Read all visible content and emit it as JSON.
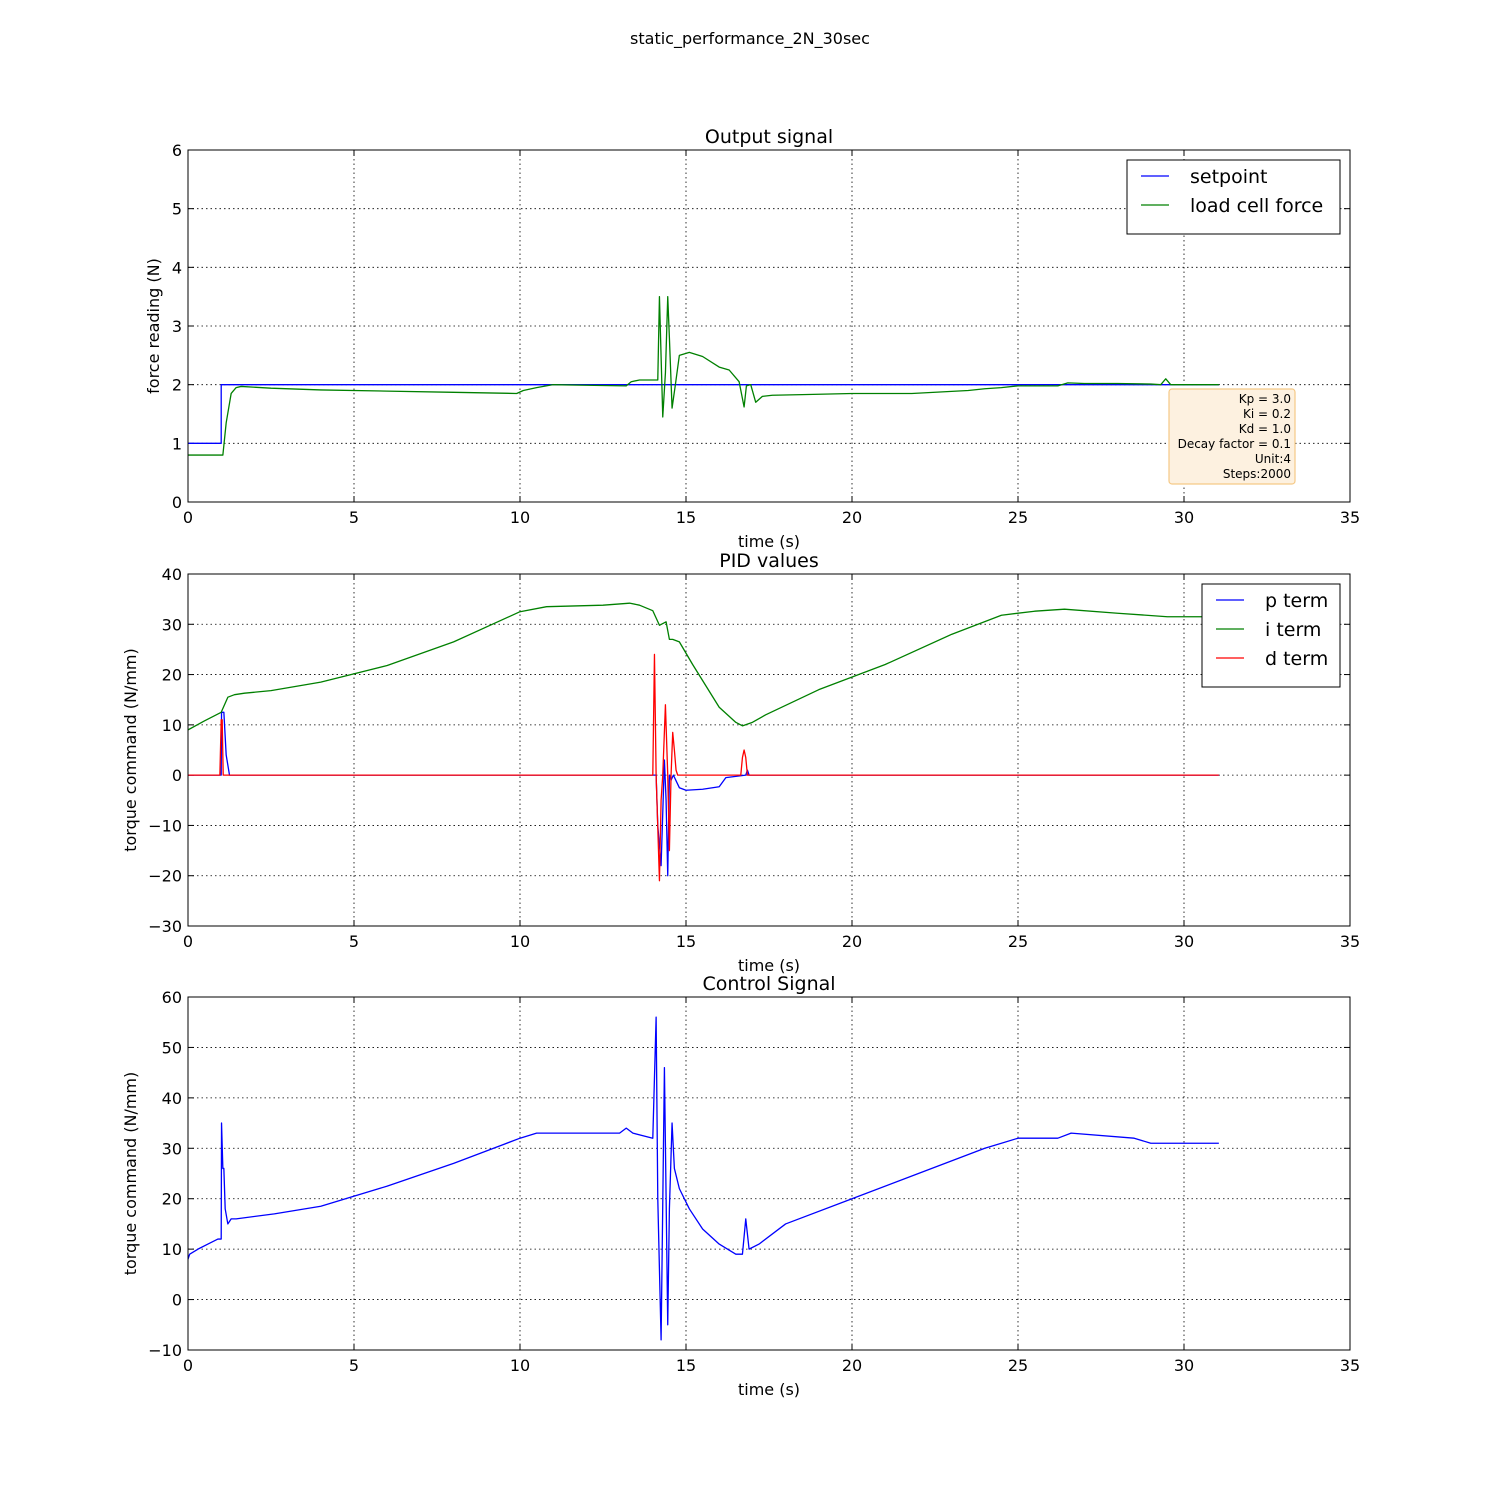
{
  "figure": {
    "suptitle": "static_performance_2N_30sec"
  },
  "annotation": {
    "lines": [
      "Kp = 3.0",
      "Ki = 0.2",
      "Kd = 1.0",
      "Decay factor = 0.1",
      "Unit:4",
      "Steps:2000"
    ],
    "box_fill": "#fdf1e0",
    "box_edge": "#f5c987"
  },
  "chart_data": [
    {
      "type": "line",
      "title": "Output signal",
      "xlabel": "time (s)",
      "ylabel": "force reading (N)",
      "xlim": [
        0,
        35
      ],
      "ylim": [
        0,
        6
      ],
      "xticks": [
        "0",
        "5",
        "10",
        "15",
        "20",
        "25",
        "30",
        "35"
      ],
      "yticks": [
        "0",
        "1",
        "2",
        "3",
        "4",
        "5",
        "6"
      ],
      "grid": true,
      "legend": "top-right",
      "series": [
        {
          "name": "setpoint",
          "color": "#0000ff",
          "x": [
            0,
            1.0,
            1.0,
            31.05
          ],
          "y": [
            1,
            1,
            2,
            2
          ]
        },
        {
          "name": "load cell force",
          "color": "#008000",
          "x": [
            0,
            1.05,
            1.15,
            1.3,
            1.45,
            1.6,
            2.5,
            4,
            6,
            8,
            9.9,
            10.1,
            10.5,
            11,
            12,
            13.2,
            13.35,
            13.6,
            14.15,
            14.2,
            14.3,
            14.38,
            14.45,
            14.5,
            14.58,
            14.68,
            14.8,
            15.1,
            15.5,
            16,
            16.3,
            16.6,
            16.75,
            16.82,
            16.95,
            17.1,
            17.3,
            17.6,
            18.5,
            20,
            21.8,
            23.5,
            24,
            24.5,
            25,
            26.2,
            26.5,
            27,
            28,
            29,
            29.3,
            29.45,
            29.6,
            30,
            31.05
          ],
          "y": [
            0.8,
            0.8,
            1.35,
            1.85,
            1.95,
            1.97,
            1.94,
            1.91,
            1.89,
            1.87,
            1.85,
            1.9,
            1.95,
            2.0,
            1.99,
            1.98,
            2.05,
            2.08,
            2.08,
            3.5,
            1.45,
            2.2,
            3.5,
            2.8,
            1.6,
            2.0,
            2.5,
            2.55,
            2.48,
            2.3,
            2.25,
            2.05,
            1.62,
            1.98,
            2.0,
            1.7,
            1.8,
            1.82,
            1.83,
            1.85,
            1.85,
            1.9,
            1.93,
            1.95,
            1.98,
            1.98,
            2.03,
            2.02,
            2.02,
            2.01,
            2.0,
            2.1,
            2.0,
            2.0,
            2.0
          ]
        }
      ]
    },
    {
      "type": "line",
      "title": "PID values",
      "xlabel": "time (s)",
      "ylabel": "torque command (N/mm)",
      "xlim": [
        0,
        35
      ],
      "ylim": [
        -30,
        40
      ],
      "xticks": [
        "0",
        "5",
        "10",
        "15",
        "20",
        "25",
        "30",
        "35"
      ],
      "yticks": [
        "−30",
        "−20",
        "−10",
        "0",
        "10",
        "20",
        "30",
        "40"
      ],
      "grid": true,
      "legend": "top-right",
      "series": [
        {
          "name": "p term",
          "color": "#0000ff",
          "x": [
            0,
            1.0,
            1.01,
            1.08,
            1.15,
            1.25,
            14.1,
            14.15,
            14.25,
            14.35,
            14.4,
            14.45,
            14.5,
            14.55,
            14.62,
            14.8,
            15.0,
            15.5,
            16.0,
            16.2,
            16.8,
            16.85,
            16.9,
            31.05
          ],
          "y": [
            0,
            0,
            12.5,
            12.5,
            4,
            0,
            0,
            -10,
            -18,
            3,
            -5,
            -20,
            0,
            -1,
            0,
            -2.5,
            -3,
            -2.8,
            -2.3,
            -0.5,
            0,
            1,
            0,
            0
          ]
        },
        {
          "name": "i term",
          "color": "#008000",
          "x": [
            0,
            0.5,
            1.0,
            1.2,
            1.4,
            1.7,
            2.5,
            4,
            6,
            8,
            10,
            10.8,
            12.5,
            13.3,
            13.6,
            14.0,
            14.2,
            14.4,
            14.5,
            14.6,
            14.8,
            15.2,
            16,
            16.5,
            16.7,
            17,
            17.4,
            19,
            21,
            23,
            24.5,
            25.5,
            26.4,
            28,
            29.5,
            31.05
          ],
          "y": [
            9,
            10.8,
            12.5,
            15.5,
            16,
            16.3,
            16.8,
            18.5,
            21.8,
            26.5,
            32.5,
            33.5,
            33.8,
            34.2,
            33.8,
            32.7,
            29.8,
            30.5,
            27,
            27,
            26.5,
            22,
            13.5,
            10.5,
            9.8,
            10.5,
            12,
            17,
            22,
            28,
            31.8,
            32.6,
            33.0,
            32.2,
            31.5,
            31.5
          ]
        },
        {
          "name": "d term",
          "color": "#ff0000",
          "x": [
            0,
            0.96,
            1.0,
            1.03,
            1.06,
            14.0,
            14.05,
            14.1,
            14.2,
            14.25,
            14.3,
            14.38,
            14.45,
            14.5,
            14.55,
            14.6,
            14.65,
            14.7,
            14.75,
            16.65,
            16.7,
            16.75,
            16.8,
            16.85,
            31.05
          ],
          "y": [
            0,
            0,
            11,
            11,
            0,
            0,
            24,
            0,
            -21,
            -5,
            0,
            14,
            0,
            -15,
            0,
            8.5,
            5,
            1,
            0,
            0,
            3.5,
            5,
            3.5,
            0,
            0
          ]
        }
      ]
    },
    {
      "type": "line",
      "title": "Control Signal",
      "xlabel": "time (s)",
      "ylabel": "torque command (N/mm)",
      "xlim": [
        0,
        35
      ],
      "ylim": [
        -10,
        60
      ],
      "xticks": [
        "0",
        "5",
        "10",
        "15",
        "20",
        "25",
        "30",
        "35"
      ],
      "yticks": [
        "−10",
        "0",
        "10",
        "20",
        "30",
        "40",
        "50",
        "60"
      ],
      "grid": true,
      "legend": "none",
      "series": [
        {
          "name": "",
          "color": "#0000ff",
          "x": [
            0,
            0.05,
            0.3,
            0.6,
            0.9,
            1.0,
            1.01,
            1.05,
            1.08,
            1.12,
            1.2,
            1.3,
            1.45,
            2.6,
            4,
            6,
            8,
            10,
            10.5,
            13.0,
            13.2,
            13.4,
            14.0,
            14.1,
            14.15,
            14.25,
            14.35,
            14.45,
            14.5,
            14.58,
            14.65,
            14.8,
            15.1,
            15.5,
            16.0,
            16.5,
            16.7,
            16.8,
            16.9,
            17.2,
            18,
            20,
            22,
            24,
            25,
            26.2,
            26.6,
            28.5,
            29.0,
            31.05
          ],
          "y": [
            8,
            9,
            10,
            11,
            12,
            12,
            35,
            26,
            26,
            18,
            15,
            16,
            16,
            17,
            18.5,
            22.5,
            27,
            32,
            33,
            33,
            34,
            33,
            32,
            56,
            20,
            -8,
            46,
            -5,
            18,
            35,
            26,
            22,
            18,
            14,
            11,
            9,
            9,
            16,
            10,
            11,
            15,
            20,
            25,
            30,
            32,
            32,
            33,
            32,
            31,
            31
          ]
        }
      ]
    }
  ]
}
